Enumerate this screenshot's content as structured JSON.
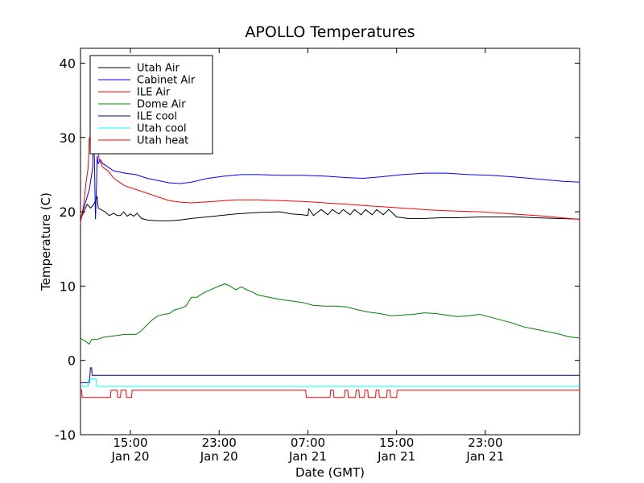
{
  "chart_data": {
    "type": "line",
    "title": "APOLLO Temperatures",
    "xlabel": "Date (GMT)",
    "ylabel": "Temperature (C)",
    "xlim": [
      0,
      45
    ],
    "ylim": [
      -10,
      42
    ],
    "x_unit": "hours since 10:30 GMT Jan 20",
    "yticks": [
      -10,
      0,
      10,
      20,
      30,
      40
    ],
    "xticks": [
      {
        "x": 4.5,
        "line1": "15:00",
        "line2": "Jan 20"
      },
      {
        "x": 12.5,
        "line1": "23:00",
        "line2": "Jan 20"
      },
      {
        "x": 20.5,
        "line1": "07:00",
        "line2": "Jan 21"
      },
      {
        "x": 28.5,
        "line1": "15:00",
        "line2": "Jan 21"
      },
      {
        "x": 36.5,
        "line1": "23:00",
        "line2": "Jan 21"
      }
    ],
    "legend_position": "top-left",
    "series": [
      {
        "name": "Utah Air",
        "color": "#000000",
        "points": [
          [
            0,
            19
          ],
          [
            0.3,
            20
          ],
          [
            0.6,
            21
          ],
          [
            0.9,
            20.5
          ],
          [
            1.2,
            21
          ],
          [
            1.5,
            22
          ],
          [
            1.6,
            20.5
          ],
          [
            2.2,
            20
          ],
          [
            2.6,
            19.5
          ],
          [
            3,
            19.8
          ],
          [
            3.3,
            19.5
          ],
          [
            3.6,
            19.5
          ],
          [
            3.9,
            20
          ],
          [
            4.2,
            19.4
          ],
          [
            4.5,
            19.7
          ],
          [
            4.8,
            19.4
          ],
          [
            5.1,
            19.8
          ],
          [
            5.5,
            19.1
          ],
          [
            6,
            18.9
          ],
          [
            7,
            18.8
          ],
          [
            8,
            18.8
          ],
          [
            9,
            18.9
          ],
          [
            10,
            19.1
          ],
          [
            12,
            19.4
          ],
          [
            14,
            19.7
          ],
          [
            16,
            19.9
          ],
          [
            18,
            20
          ],
          [
            19,
            19.7
          ],
          [
            20,
            19.6
          ],
          [
            20.5,
            19.5
          ],
          [
            20.6,
            20.4
          ],
          [
            21,
            19.5
          ],
          [
            21.7,
            20.3
          ],
          [
            22.3,
            19.6
          ],
          [
            22.7,
            20.3
          ],
          [
            23.3,
            19.7
          ],
          [
            23.7,
            20.3
          ],
          [
            24.3,
            19.6
          ],
          [
            24.7,
            20.3
          ],
          [
            25.3,
            19.6
          ],
          [
            25.7,
            20.3
          ],
          [
            26.3,
            19.6
          ],
          [
            26.7,
            20.3
          ],
          [
            27.3,
            19.6
          ],
          [
            27.8,
            20.3
          ],
          [
            28.5,
            19.3
          ],
          [
            29.5,
            19.1
          ],
          [
            31,
            19.1
          ],
          [
            32.5,
            19.2
          ],
          [
            34,
            19.2
          ],
          [
            36,
            19.3
          ],
          [
            38,
            19.3
          ],
          [
            39.5,
            19.3
          ],
          [
            41,
            19.2
          ],
          [
            43,
            19.1
          ],
          [
            45,
            19
          ]
        ]
      },
      {
        "name": "Cabinet Air",
        "color": "#0000ff",
        "points": [
          [
            0,
            19
          ],
          [
            0.4,
            21
          ],
          [
            0.8,
            23
          ],
          [
            1.1,
            26
          ],
          [
            1.2,
            32.5
          ],
          [
            1.3,
            23
          ],
          [
            1.35,
            19
          ],
          [
            1.45,
            24
          ],
          [
            1.5,
            27.5
          ],
          [
            1.6,
            26.5
          ],
          [
            1.8,
            27
          ],
          [
            2,
            26.5
          ],
          [
            2.5,
            26
          ],
          [
            3,
            25.5
          ],
          [
            4,
            25.2
          ],
          [
            5,
            25
          ],
          [
            6,
            24.5
          ],
          [
            7,
            24.2
          ],
          [
            8,
            23.9
          ],
          [
            9,
            23.8
          ],
          [
            10,
            24
          ],
          [
            11.5,
            24.5
          ],
          [
            13,
            24.8
          ],
          [
            14.5,
            25
          ],
          [
            16,
            25
          ],
          [
            18,
            24.9
          ],
          [
            20,
            24.9
          ],
          [
            22,
            24.8
          ],
          [
            24,
            24.6
          ],
          [
            25.5,
            24.5
          ],
          [
            27,
            24.7
          ],
          [
            29,
            25
          ],
          [
            31,
            25.2
          ],
          [
            33,
            25.2
          ],
          [
            35,
            25
          ],
          [
            37,
            24.9
          ],
          [
            39,
            24.7
          ],
          [
            40.5,
            24.5
          ],
          [
            42,
            24.3
          ],
          [
            43.5,
            24.1
          ],
          [
            45,
            24
          ]
        ]
      },
      {
        "name": "ILE Air",
        "color": "#ff0000",
        "points": [
          [
            0,
            18.5
          ],
          [
            0.3,
            21
          ],
          [
            0.5,
            24
          ],
          [
            0.7,
            26
          ],
          [
            0.8,
            30
          ],
          [
            0.95,
            29
          ],
          [
            1.1,
            31
          ],
          [
            1.3,
            28
          ],
          [
            1.5,
            28.5
          ],
          [
            1.7,
            27
          ],
          [
            2,
            26
          ],
          [
            2.5,
            25.5
          ],
          [
            3,
            24.5
          ],
          [
            3.5,
            24
          ],
          [
            4,
            23.5
          ],
          [
            5,
            23
          ],
          [
            6,
            22.5
          ],
          [
            7,
            22
          ],
          [
            8,
            21.5
          ],
          [
            9,
            21.3
          ],
          [
            10,
            21.2
          ],
          [
            11,
            21.3
          ],
          [
            12,
            21.4
          ],
          [
            13,
            21.5
          ],
          [
            14,
            21.6
          ],
          [
            16,
            21.6
          ],
          [
            18,
            21.5
          ],
          [
            20,
            21.4
          ],
          [
            22,
            21.2
          ],
          [
            24,
            21
          ],
          [
            26,
            20.8
          ],
          [
            28,
            20.6
          ],
          [
            30,
            20.4
          ],
          [
            32,
            20.2
          ],
          [
            34,
            20.1
          ],
          [
            36,
            20
          ],
          [
            38,
            19.8
          ],
          [
            40,
            19.6
          ],
          [
            42,
            19.4
          ],
          [
            44,
            19.1
          ],
          [
            45,
            19
          ]
        ]
      },
      {
        "name": "Dome Air",
        "color": "#008000",
        "points": [
          [
            0,
            3
          ],
          [
            0.5,
            2.5
          ],
          [
            0.8,
            2.2
          ],
          [
            1,
            2.8
          ],
          [
            1.5,
            2.8
          ],
          [
            2,
            3.1
          ],
          [
            2.5,
            3.2
          ],
          [
            3,
            3.3
          ],
          [
            4,
            3.5
          ],
          [
            5,
            3.5
          ],
          [
            5.5,
            4
          ],
          [
            6,
            4.8
          ],
          [
            6.5,
            5.5
          ],
          [
            7,
            6
          ],
          [
            7.5,
            6.2
          ],
          [
            8,
            6.3
          ],
          [
            8.5,
            6.8
          ],
          [
            9,
            7
          ],
          [
            9.5,
            7.3
          ],
          [
            10,
            8.5
          ],
          [
            10.5,
            8.5
          ],
          [
            11,
            9
          ],
          [
            12,
            9.7
          ],
          [
            12.5,
            10
          ],
          [
            13,
            10.3
          ],
          [
            13.5,
            10
          ],
          [
            14,
            9.5
          ],
          [
            14.5,
            9.9
          ],
          [
            15,
            9.5
          ],
          [
            15.5,
            9.2
          ],
          [
            16,
            8.8
          ],
          [
            17,
            8.5
          ],
          [
            18,
            8.2
          ],
          [
            19,
            8
          ],
          [
            20,
            7.8
          ],
          [
            20.5,
            7.6
          ],
          [
            21,
            7.4
          ],
          [
            22,
            7.3
          ],
          [
            23,
            7.3
          ],
          [
            24,
            7.2
          ],
          [
            25,
            6.8
          ],
          [
            26,
            6.5
          ],
          [
            27,
            6.3
          ],
          [
            28,
            6
          ],
          [
            29,
            6.1
          ],
          [
            30,
            6.2
          ],
          [
            31,
            6.4
          ],
          [
            32,
            6.3
          ],
          [
            33,
            6.1
          ],
          [
            34,
            5.9
          ],
          [
            35,
            6
          ],
          [
            36,
            6.2
          ],
          [
            37,
            5.8
          ],
          [
            38,
            5.4
          ],
          [
            39,
            5
          ],
          [
            40,
            4.5
          ],
          [
            41,
            4.2
          ],
          [
            42,
            3.9
          ],
          [
            43,
            3.6
          ],
          [
            44,
            3.2
          ],
          [
            45,
            3
          ]
        ]
      },
      {
        "name": "ILE cool",
        "color": "#00007f",
        "points": [
          [
            0,
            -3
          ],
          [
            0.5,
            -3
          ],
          [
            0.8,
            -3
          ],
          [
            0.85,
            -2
          ],
          [
            0.9,
            -1
          ],
          [
            1,
            -1
          ],
          [
            1.05,
            -2
          ],
          [
            45,
            -2
          ]
        ]
      },
      {
        "name": "Utah cool",
        "color": "#00ffff",
        "points": [
          [
            0,
            -3.5
          ],
          [
            0.7,
            -3.5
          ],
          [
            0.75,
            -2.5
          ],
          [
            1.4,
            -2.5
          ],
          [
            1.45,
            -3.5
          ],
          [
            45,
            -3.5
          ]
        ]
      },
      {
        "name": "Utah heat",
        "color": "#ff0000",
        "points": [
          [
            0,
            -4
          ],
          [
            0.1,
            -4
          ],
          [
            0.15,
            -5
          ],
          [
            2.7,
            -5
          ],
          [
            2.75,
            -4
          ],
          [
            3.3,
            -4
          ],
          [
            3.35,
            -5
          ],
          [
            3.6,
            -5
          ],
          [
            3.65,
            -4
          ],
          [
            4.1,
            -4
          ],
          [
            4.15,
            -5
          ],
          [
            4.6,
            -5
          ],
          [
            4.65,
            -4
          ],
          [
            20.3,
            -4
          ],
          [
            20.35,
            -5
          ],
          [
            22.5,
            -5
          ],
          [
            22.55,
            -4
          ],
          [
            22.8,
            -4
          ],
          [
            22.85,
            -5
          ],
          [
            23.8,
            -5
          ],
          [
            23.85,
            -4
          ],
          [
            24.1,
            -4
          ],
          [
            24.15,
            -5
          ],
          [
            24.8,
            -5
          ],
          [
            24.85,
            -4
          ],
          [
            25.1,
            -4
          ],
          [
            25.15,
            -5
          ],
          [
            25.6,
            -5
          ],
          [
            25.65,
            -4
          ],
          [
            25.9,
            -4
          ],
          [
            25.95,
            -5
          ],
          [
            26.6,
            -5
          ],
          [
            26.65,
            -4
          ],
          [
            26.9,
            -4
          ],
          [
            26.95,
            -5
          ],
          [
            27.6,
            -5
          ],
          [
            27.65,
            -4
          ],
          [
            27.9,
            -4
          ],
          [
            27.95,
            -5
          ],
          [
            28.5,
            -5
          ],
          [
            28.55,
            -4
          ],
          [
            45,
            -4
          ]
        ]
      }
    ]
  }
}
